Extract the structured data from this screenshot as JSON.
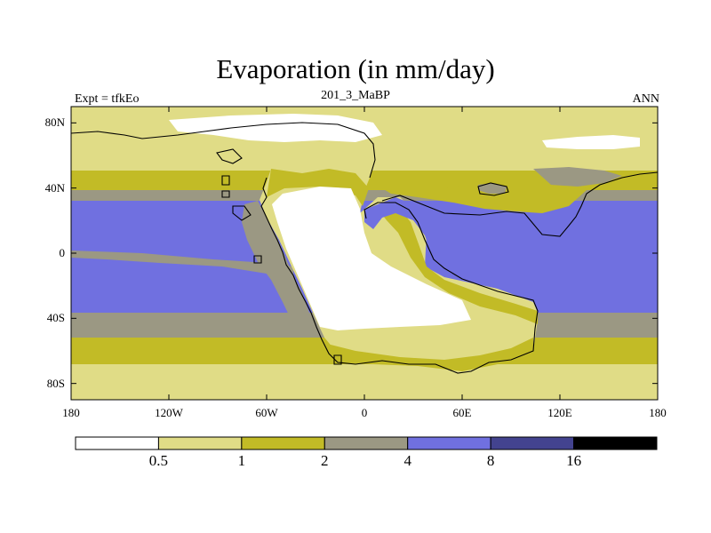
{
  "header": {
    "title": "Evaporation (in mm/day)",
    "left_label": "Expt = tfkEo",
    "center_label": "201_3_MaBP",
    "right_label": "ANN"
  },
  "axes": {
    "lat_ticks": [
      {
        "label": "80N",
        "value": 80
      },
      {
        "label": "40N",
        "value": 40
      },
      {
        "label": "0",
        "value": 0
      },
      {
        "label": "40S",
        "value": -40
      },
      {
        "label": "80S",
        "value": -80
      }
    ],
    "lon_ticks": [
      {
        "label": "180",
        "value": -180
      },
      {
        "label": "120W",
        "value": -120
      },
      {
        "label": "60W",
        "value": -60
      },
      {
        "label": "0",
        "value": 0
      },
      {
        "label": "60E",
        "value": 60
      },
      {
        "label": "120E",
        "value": 120
      },
      {
        "label": "180",
        "value": 180
      }
    ],
    "lat_range": [
      -90,
      90
    ],
    "lon_range": [
      -180,
      180
    ]
  },
  "colorbar": {
    "boundaries": [
      "0.5",
      "1",
      "2",
      "4",
      "8",
      "16"
    ],
    "colors": [
      "#ffffff",
      "#e0dc86",
      "#c2bb26",
      "#9b9883",
      "#7070e0",
      "#43438f",
      "#000000"
    ]
  },
  "map_colors": {
    "white": "#ffffff",
    "light_yellow": "#e0dc86",
    "olive": "#c2bb26",
    "gray": "#9b9883",
    "blue": "#7070e0",
    "coast": "#000000"
  }
}
